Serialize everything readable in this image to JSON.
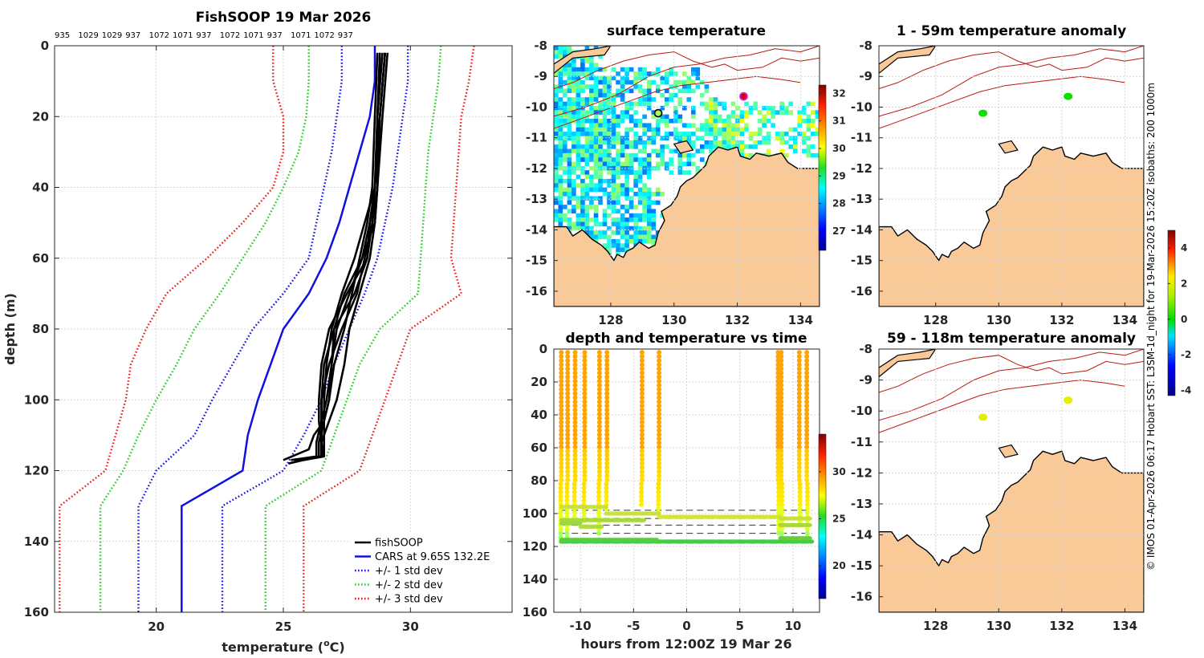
{
  "chart_data": [
    {
      "id": "profile",
      "type": "line",
      "title": "FishSOOP 19 Mar 2026",
      "cast_labels": [
        "935",
        "1029",
        "1029",
        "937",
        "1072",
        "1071",
        "937",
        "1072",
        "1071",
        "937",
        "1071",
        "1072",
        "937"
      ],
      "xlabel": "temperature (",
      "xlabel_sup": "o",
      "xlabel_tail": "C)",
      "ylabel": "depth (m)",
      "xlim": [
        16,
        34
      ],
      "ylim": [
        0,
        160
      ],
      "xticks": [
        "20",
        "25",
        "30"
      ],
      "xtick_values": [
        20,
        25,
        30
      ],
      "yticks": [
        "0",
        "20",
        "40",
        "60",
        "80",
        "100",
        "120",
        "140",
        "160"
      ],
      "ytick_values": [
        0,
        20,
        40,
        60,
        80,
        100,
        120,
        140,
        160
      ],
      "colors": {
        "fish": "#000000",
        "cars": "#1010e0",
        "sd1": "#1010e0",
        "sd2": "#22cc22",
        "sd3": "#e0201a"
      },
      "legend": {
        "position": "bottom-right",
        "entries": [
          "fishSOOP",
          "CARS at 9.65S 132.2E",
          "+/- 1 std dev",
          "+/- 2 std dev",
          "+/- 3 std dev"
        ]
      },
      "series": [
        {
          "name": "CARS mean",
          "style": "solid",
          "color_key": "cars",
          "depth": [
            0,
            10,
            20,
            30,
            40,
            50,
            60,
            70,
            80,
            90,
            100,
            110,
            120,
            130,
            160
          ],
          "temp": [
            28.6,
            28.6,
            28.4,
            28.0,
            27.6,
            27.2,
            26.7,
            26.0,
            25.0,
            24.5,
            24.0,
            23.6,
            23.4,
            21.0,
            21.0
          ]
        },
        {
          "name": "+1 std dev",
          "style": "dotted",
          "color_key": "sd1",
          "depth": [
            0,
            10,
            20,
            30,
            40,
            50,
            60,
            70,
            80,
            90,
            100,
            110,
            120,
            130,
            160
          ],
          "temp": [
            29.9,
            29.9,
            29.7,
            29.5,
            29.3,
            29.0,
            28.7,
            28.2,
            27.6,
            27.0,
            26.5,
            25.8,
            25.0,
            22.6,
            22.6
          ]
        },
        {
          "name": "-1 std dev",
          "style": "dotted",
          "color_key": "sd1",
          "depth": [
            0,
            10,
            20,
            30,
            40,
            50,
            60,
            70,
            80,
            90,
            100,
            110,
            120,
            130,
            160
          ],
          "temp": [
            27.3,
            27.3,
            27.1,
            26.9,
            26.6,
            26.3,
            26.0,
            25.0,
            23.8,
            23.0,
            22.2,
            21.5,
            20.0,
            19.3,
            19.3
          ]
        },
        {
          "name": "+2 std dev",
          "style": "dotted",
          "color_key": "sd2",
          "depth": [
            0,
            10,
            20,
            30,
            40,
            50,
            60,
            70,
            80,
            90,
            100,
            110,
            120,
            130,
            160
          ],
          "temp": [
            31.2,
            31.1,
            30.9,
            30.7,
            30.6,
            30.5,
            30.4,
            30.3,
            28.8,
            28.0,
            27.5,
            27.0,
            26.5,
            24.3,
            24.3
          ]
        },
        {
          "name": "-2 std dev",
          "style": "dotted",
          "color_key": "sd2",
          "depth": [
            0,
            10,
            20,
            30,
            40,
            50,
            60,
            70,
            80,
            90,
            100,
            110,
            120,
            130,
            160
          ],
          "temp": [
            26.0,
            26.0,
            25.9,
            25.6,
            25.0,
            24.3,
            23.4,
            22.5,
            21.5,
            20.8,
            20.0,
            19.3,
            18.7,
            17.8,
            17.8
          ]
        },
        {
          "name": "+3 std dev",
          "style": "dotted",
          "color_key": "sd3",
          "depth": [
            0,
            10,
            20,
            30,
            40,
            50,
            60,
            70,
            80,
            90,
            100,
            110,
            120,
            130,
            160
          ],
          "temp": [
            32.5,
            32.3,
            32.0,
            31.9,
            31.8,
            31.7,
            31.6,
            32.0,
            30.0,
            29.5,
            29.0,
            28.5,
            28.0,
            25.8,
            25.8
          ]
        },
        {
          "name": "-3 std dev",
          "style": "dotted",
          "color_key": "sd3",
          "depth": [
            0,
            10,
            20,
            30,
            40,
            50,
            60,
            70,
            80,
            90,
            100,
            110,
            120,
            130,
            160
          ],
          "temp": [
            24.6,
            24.6,
            25.0,
            25.0,
            24.6,
            23.4,
            22.0,
            20.4,
            19.6,
            19.0,
            18.8,
            18.4,
            18.0,
            16.2,
            16.2
          ]
        }
      ],
      "fish_profiles": [
        {
          "depth": [
            2,
            20,
            40,
            50,
            60,
            70,
            80,
            90,
            100,
            106,
            112,
            116,
            118
          ],
          "temp": [
            28.8,
            28.7,
            28.6,
            28.4,
            28.1,
            27.6,
            27.1,
            26.9,
            26.8,
            26.6,
            26.4,
            26.4,
            25.2
          ]
        },
        {
          "depth": [
            2,
            20,
            40,
            50,
            60,
            70,
            80,
            90,
            100,
            106,
            112,
            116,
            117
          ],
          "temp": [
            29.0,
            28.8,
            28.6,
            28.5,
            28.3,
            27.8,
            27.0,
            26.6,
            26.5,
            26.5,
            26.5,
            26.5,
            25.4
          ]
        },
        {
          "depth": [
            2,
            20,
            40,
            50,
            60,
            70,
            80,
            90,
            100,
            106,
            112,
            116,
            117
          ],
          "temp": [
            28.9,
            28.7,
            28.7,
            28.6,
            28.4,
            28.0,
            27.6,
            27.4,
            27.1,
            26.8,
            26.5,
            26.5,
            25.6
          ]
        },
        {
          "depth": [
            2,
            20,
            40,
            50,
            60,
            70,
            80,
            90,
            100,
            106,
            112,
            116
          ],
          "temp": [
            29.0,
            28.8,
            28.6,
            28.2,
            27.8,
            27.3,
            26.9,
            26.7,
            26.6,
            26.6,
            26.6,
            26.6
          ]
        },
        {
          "depth": [
            2,
            20,
            40,
            50,
            60,
            70,
            80,
            90,
            100,
            106,
            110,
            114,
            117
          ],
          "temp": [
            28.7,
            28.6,
            28.5,
            28.3,
            28.0,
            27.7,
            27.4,
            27.0,
            26.8,
            26.6,
            26.2,
            26.0,
            25.0
          ]
        },
        {
          "depth": [
            2,
            20,
            40,
            50,
            60,
            70,
            80,
            90,
            100,
            106,
            112,
            116,
            117
          ],
          "temp": [
            29.1,
            28.9,
            28.7,
            28.5,
            28.2,
            27.9,
            27.3,
            26.8,
            26.5,
            26.5,
            26.5,
            26.6,
            25.8
          ]
        },
        {
          "depth": [
            2,
            20,
            40,
            50,
            60,
            70,
            80,
            90,
            100,
            106,
            112,
            116
          ],
          "temp": [
            28.8,
            28.7,
            28.6,
            28.4,
            28.3,
            27.5,
            26.8,
            26.5,
            26.4,
            26.4,
            26.5,
            26.5
          ]
        },
        {
          "depth": [
            2,
            20,
            40,
            50,
            60,
            70,
            80,
            90,
            100,
            106,
            112,
            116,
            117
          ],
          "temp": [
            29.0,
            28.8,
            28.7,
            28.6,
            28.1,
            27.4,
            27.0,
            26.9,
            26.7,
            26.5,
            26.3,
            26.3,
            25.3
          ]
        }
      ]
    },
    {
      "id": "surface-map",
      "type": "heatmap",
      "title": "surface temperature",
      "xlim": [
        126.2,
        134.6
      ],
      "ylim": [
        -16.5,
        -8
      ],
      "xticks": [
        "128",
        "130",
        "132",
        "134"
      ],
      "xtick_values": [
        128,
        130,
        132,
        134
      ],
      "yticks": [
        "-8",
        "-9",
        "-10",
        "-11",
        "-12",
        "-13",
        "-14",
        "-15",
        "-16"
      ],
      "ytick_values": [
        -8,
        -9,
        -10,
        -11,
        -12,
        -13,
        -14,
        -15,
        -16
      ],
      "colorbar": {
        "min": 26.3,
        "max": 32.3,
        "ticks": [
          "27",
          "28",
          "29",
          "30",
          "31",
          "32"
        ],
        "tick_values": [
          27,
          28,
          29,
          30,
          31,
          32
        ]
      },
      "markers": [
        {
          "lon": 129.5,
          "lat": -10.2,
          "value": 29.5,
          "edge": "#111111"
        },
        {
          "lon": 132.2,
          "lat": -9.65,
          "value": 31.8,
          "edge": "#dd22dd"
        }
      ]
    },
    {
      "id": "anomaly-shallow",
      "type": "scatter",
      "title": "1 - 59m temperature anomaly",
      "xlim": [
        126.2,
        134.6
      ],
      "ylim": [
        -16.5,
        -8
      ],
      "xticks": [
        "128",
        "130",
        "132",
        "134"
      ],
      "xtick_values": [
        128,
        130,
        132,
        134
      ],
      "yticks": [
        "-8",
        "-9",
        "-10",
        "-11",
        "-12",
        "-13",
        "-14",
        "-15",
        "-16"
      ],
      "ytick_values": [
        -8,
        -9,
        -10,
        -11,
        -12,
        -13,
        -14,
        -15,
        -16
      ],
      "points": [
        {
          "lon": 129.5,
          "lat": -10.2,
          "anomaly": 0.1
        },
        {
          "lon": 132.2,
          "lat": -9.65,
          "anomaly": 0.1
        }
      ]
    },
    {
      "id": "anomaly-deep",
      "type": "scatter",
      "title": "59 - 118m temperature anomaly",
      "xlim": [
        126.2,
        134.6
      ],
      "ylim": [
        -16.5,
        -8
      ],
      "xticks": [
        "128",
        "130",
        "132",
        "134"
      ],
      "xtick_values": [
        128,
        130,
        132,
        134
      ],
      "yticks": [
        "-8",
        "-9",
        "-10",
        "-11",
        "-12",
        "-13",
        "-14",
        "-15",
        "-16"
      ],
      "ytick_values": [
        -8,
        -9,
        -10,
        -11,
        -12,
        -13,
        -14,
        -15,
        -16
      ],
      "points": [
        {
          "lon": 129.5,
          "lat": -10.2,
          "anomaly": 2.0
        },
        {
          "lon": 132.2,
          "lat": -9.65,
          "anomaly": 2.0
        }
      ],
      "colorbar": {
        "min": -4.3,
        "max": 5.0,
        "ticks": [
          "-4",
          "-2",
          "0",
          "2",
          "4"
        ],
        "tick_values": [
          -4,
          -2,
          0,
          2,
          4
        ]
      }
    },
    {
      "id": "depth-time",
      "type": "scatter",
      "title": "depth and temperature vs time",
      "xlabel": "hours from 12:00Z 19 Mar 26",
      "xlim": [
        -12.5,
        12.5
      ],
      "ylim": [
        0,
        160
      ],
      "xticks": [
        "-10",
        "-5",
        "0",
        "5",
        "10"
      ],
      "xtick_values": [
        -10,
        -5,
        0,
        5,
        10
      ],
      "yticks": [
        "0",
        "20",
        "40",
        "60",
        "80",
        "100",
        "120",
        "140",
        "160"
      ],
      "ytick_values": [
        0,
        20,
        40,
        60,
        80,
        100,
        120,
        140,
        160
      ],
      "colorbar": {
        "min": 16.5,
        "max": 34.0,
        "ticks": [
          "20",
          "25",
          "30"
        ],
        "tick_values": [
          20,
          25,
          30
        ]
      },
      "ref_depths": [
        98,
        103,
        107,
        112,
        118
      ],
      "casts": [
        {
          "t": -11.8,
          "depth": 118
        },
        {
          "t": -11.2,
          "depth": 117
        },
        {
          "t": -10.5,
          "depth": 104
        },
        {
          "t": -9.6,
          "depth": 106
        },
        {
          "t": -8.2,
          "depth": 112
        },
        {
          "t": -7.5,
          "depth": 98
        },
        {
          "t": -4.2,
          "depth": 96
        },
        {
          "t": -2.6,
          "depth": 101
        },
        {
          "t": 8.6,
          "depth": 112
        },
        {
          "t": 8.9,
          "depth": 118
        },
        {
          "t": 10.6,
          "depth": 107
        },
        {
          "t": 11.3,
          "depth": 116
        }
      ]
    }
  ],
  "credit": "© IMOS 01-Apr-2026 06:17 Hobart SST: L3SM-1d_night for 19-Mar-2026 15:20Z isobaths: 200  1000m"
}
